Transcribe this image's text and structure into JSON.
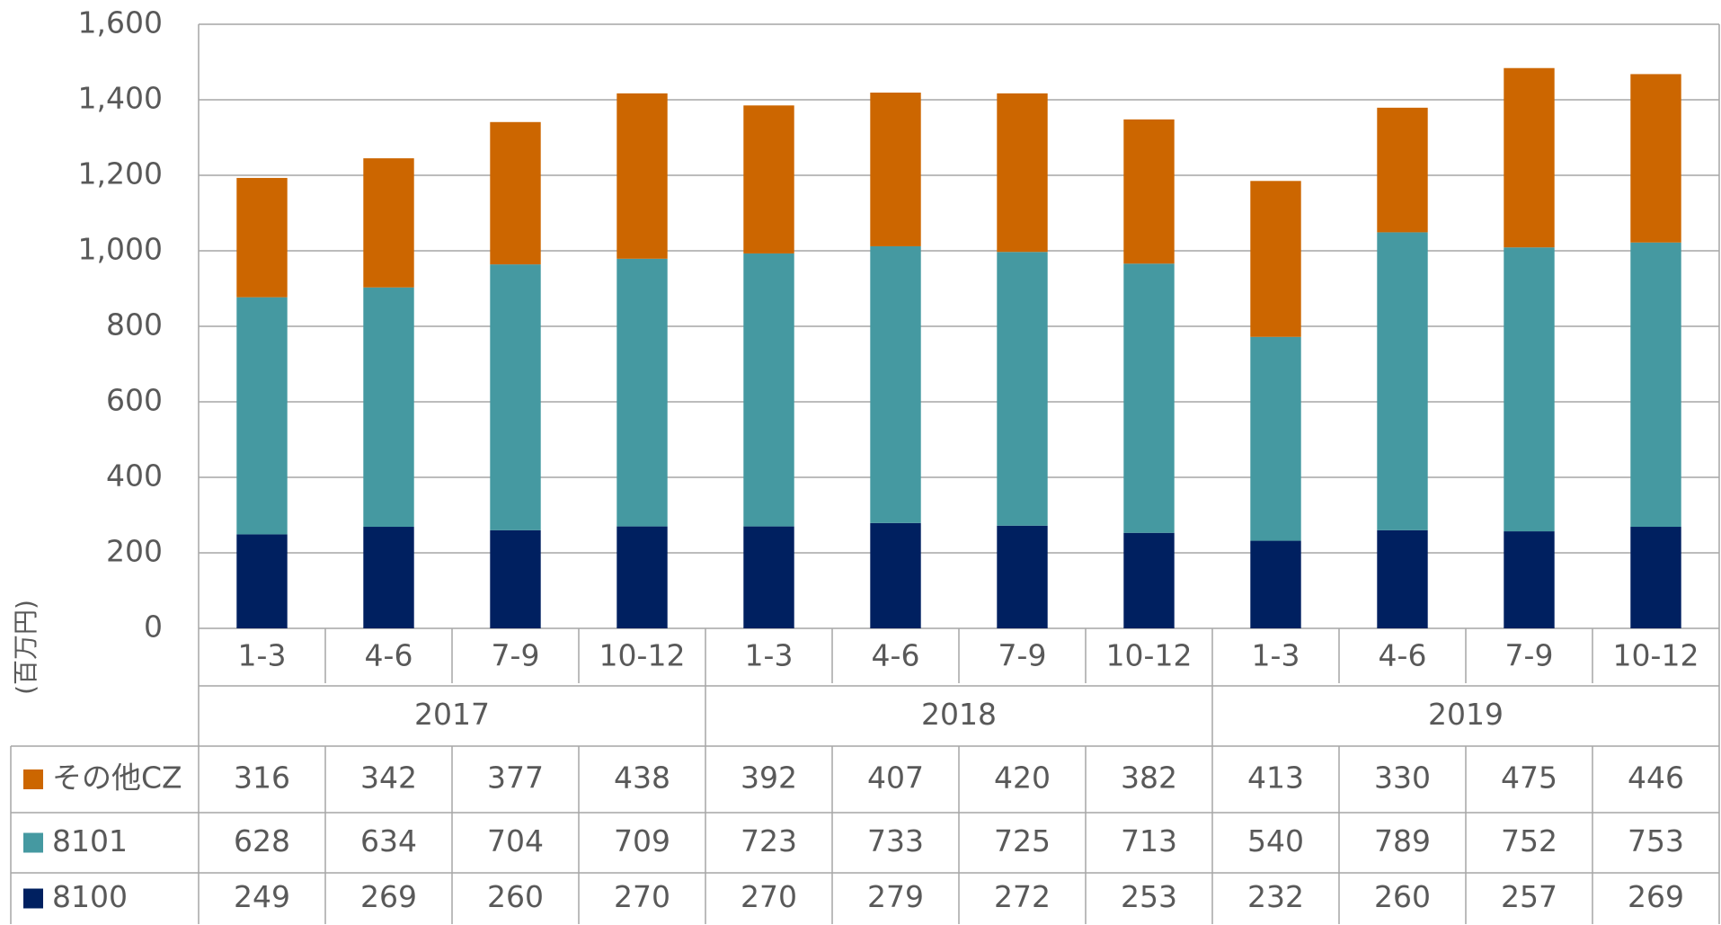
{
  "chart_data": {
    "type": "bar",
    "stacked": true,
    "y_label": "(百万円)",
    "categories": [
      "1-3",
      "4-6",
      "7-9",
      "10-12",
      "1-3",
      "4-6",
      "7-9",
      "10-12",
      "1-3",
      "4-6",
      "7-9",
      "10-12"
    ],
    "years": [
      "2017",
      "2018",
      "2019"
    ],
    "series": [
      {
        "name": "8100",
        "color": "#002060",
        "values": [
          249,
          269,
          260,
          270,
          270,
          279,
          272,
          253,
          232,
          260,
          257,
          269
        ]
      },
      {
        "name": "8101",
        "color": "#4599a1",
        "values": [
          628,
          634,
          704,
          709,
          723,
          733,
          725,
          713,
          540,
          789,
          752,
          753
        ]
      },
      {
        "name": "その他CZ",
        "color": "#cc6600",
        "values": [
          316,
          342,
          377,
          438,
          392,
          407,
          420,
          382,
          413,
          330,
          475,
          446
        ]
      }
    ],
    "ylim": [
      0,
      1600
    ],
    "yticks": [
      0,
      200,
      400,
      600,
      800,
      {
        "value": 1000,
        "label": "1,000"
      },
      {
        "value": 1200,
        "label": "1,200"
      },
      {
        "value": 1400,
        "label": "1,400"
      },
      {
        "value": 1600,
        "label": "1,600"
      }
    ],
    "grid": true
  }
}
